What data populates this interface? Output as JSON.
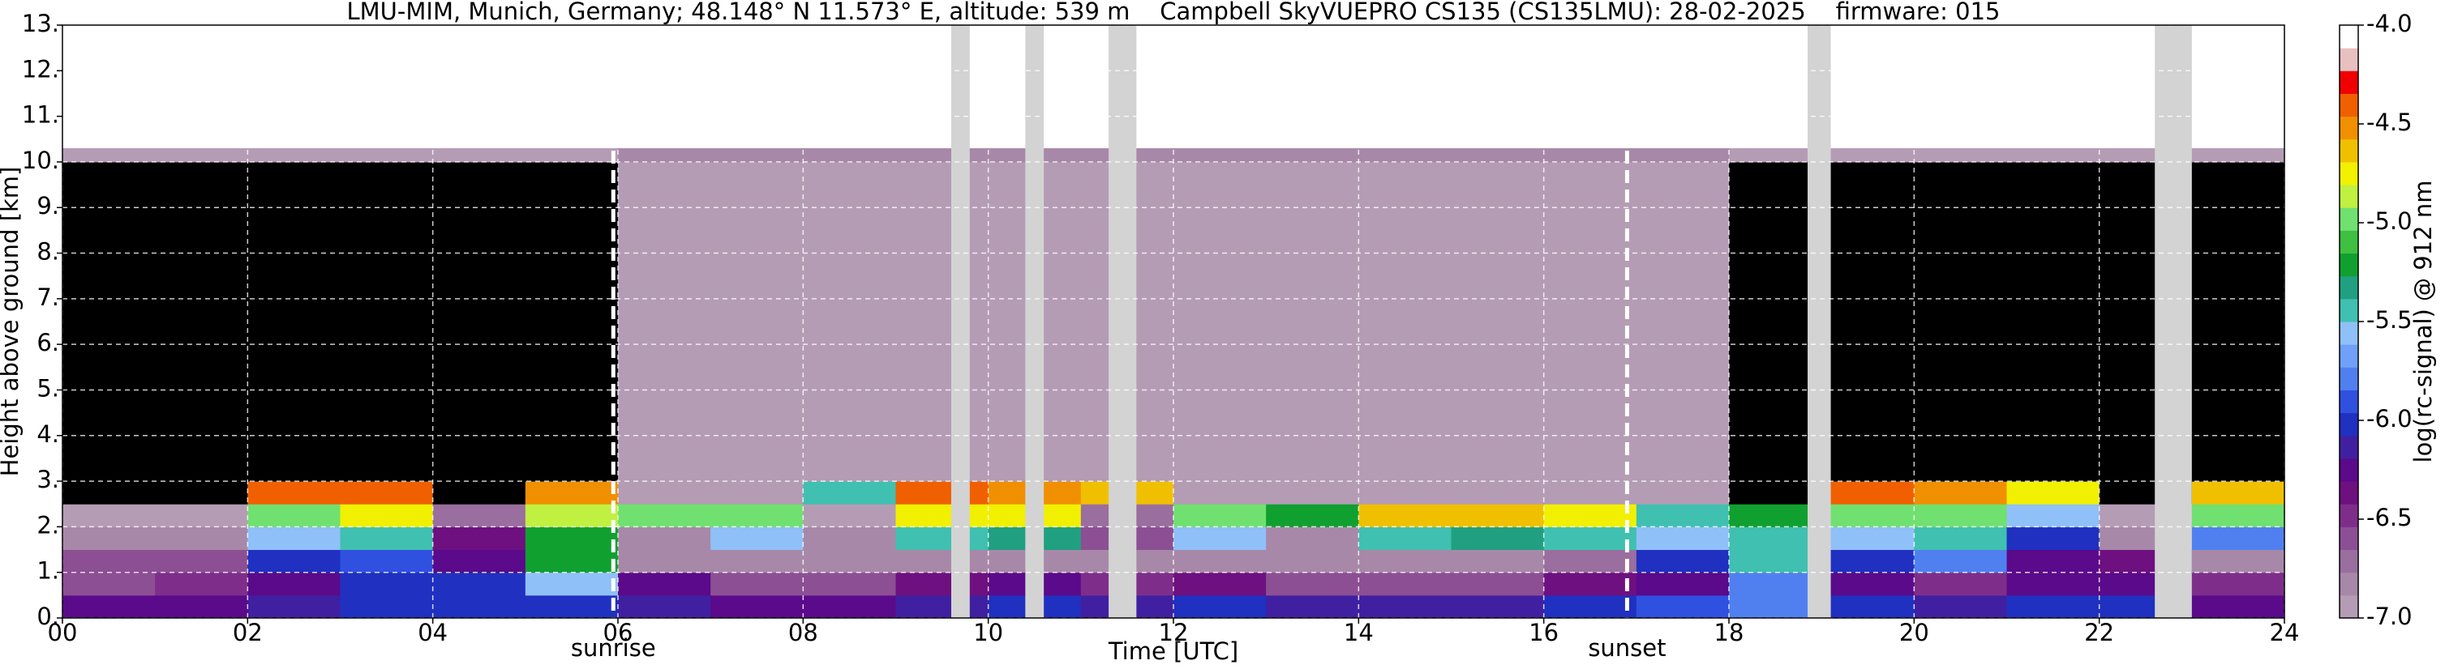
{
  "chart_data": {
    "type": "heatmap",
    "title": "LMU-MIM, Munich, Germany; 48.148° N 11.573° E, altitude: 539 m    Campbell SkyVUEPRO CS135 (CS135LMU): 28-02-2025    firmware: 015",
    "xlabel": "Time [UTC]",
    "ylabel": "Height above ground [km]",
    "colorbar_label": "log(rc-signal) @ 912 nm",
    "xlim": [
      0,
      24
    ],
    "ylim": [
      0,
      13
    ],
    "xticks": [
      {
        "value": 0,
        "label": "00"
      },
      {
        "value": 2,
        "label": "02"
      },
      {
        "value": 4,
        "label": "04"
      },
      {
        "value": 6,
        "label": "06"
      },
      {
        "value": 8,
        "label": "08"
      },
      10,
      12,
      14,
      16,
      18,
      20,
      22,
      24
    ],
    "yticks": [
      {
        "value": 0,
        "label": "0."
      },
      {
        "value": 1,
        "label": "1."
      },
      {
        "value": 2,
        "label": "2."
      },
      {
        "value": 3,
        "label": "3."
      },
      {
        "value": 4,
        "label": "4."
      },
      {
        "value": 5,
        "label": "5."
      },
      {
        "value": 6,
        "label": "6."
      },
      {
        "value": 7,
        "label": "7."
      },
      {
        "value": 8,
        "label": "8."
      },
      {
        "value": 9,
        "label": "9."
      },
      {
        "value": 10,
        "label": "10."
      },
      {
        "value": 11,
        "label": "11."
      },
      {
        "value": 12,
        "label": "12."
      },
      {
        "value": 13,
        "label": "13."
      }
    ],
    "grid": true,
    "clim": [
      -7,
      -4
    ],
    "cticks": [
      {
        "value": -4,
        "label": "-4.0"
      },
      {
        "value": -4.5,
        "label": "-4.5"
      },
      {
        "value": -5,
        "label": "-5.0"
      },
      {
        "value": -5.5,
        "label": "-5.5"
      },
      {
        "value": -6,
        "label": "-6.0"
      },
      {
        "value": -6.5,
        "label": "-6.5"
      },
      {
        "value": -7,
        "label": "-7.0"
      }
    ],
    "colors": [
      "#b59cb5",
      "#a888a8",
      "#9a6e9e",
      "#8c4f94",
      "#7e2e8a",
      "#6e1080",
      "#5a0a8a",
      "#4020a0",
      "#2030c0",
      "#3050e0",
      "#5080f0",
      "#70a0f8",
      "#90c0f8",
      "#40c0b0",
      "#20a080",
      "#10a030",
      "#40c040",
      "#70e070",
      "#c0f040",
      "#f0f000",
      "#f0c000",
      "#f09000",
      "#f06000",
      "#f00000",
      "#e8c0c0",
      "#ffffff"
    ],
    "below_color": "#000000",
    "gap_color": "#d3d3d3",
    "x_edges": [
      0,
      1,
      2,
      3,
      4,
      5,
      6,
      7,
      8,
      9,
      10,
      11,
      12,
      13,
      14,
      15,
      16,
      17,
      18,
      19,
      20,
      21,
      22,
      23,
      24
    ],
    "y_edges": [
      0,
      0.5,
      1,
      1.5,
      2,
      2.5,
      3,
      4,
      5,
      6,
      7,
      8,
      9,
      10,
      10.3
    ],
    "z": [
      [
        -6.2,
        -6.2,
        -6.1,
        -6.0,
        -6.0,
        -6.0,
        -6.1,
        -6.2,
        -6.2,
        -6.1,
        -6.0,
        -6.1,
        -6.0,
        -6.1,
        -6.1,
        -6.1,
        -6.0,
        -5.9,
        -5.8,
        -6.0,
        -6.1,
        -6.0,
        -6.0,
        -6.2
      ],
      [
        -6.6,
        -6.5,
        -6.2,
        -6.0,
        -6.0,
        -5.6,
        -6.3,
        -6.6,
        -6.6,
        -6.4,
        -6.3,
        -6.5,
        -6.4,
        -6.6,
        -6.6,
        -6.6,
        -6.4,
        -6.2,
        -5.8,
        -6.3,
        -6.5,
        -6.3,
        -6.2,
        -6.5
      ],
      [
        -6.6,
        -6.6,
        -6.0,
        -5.9,
        -6.2,
        -5.2,
        -6.8,
        -6.8,
        -6.8,
        -6.8,
        -6.8,
        -6.8,
        -6.8,
        -6.8,
        -6.8,
        -6.8,
        -6.7,
        -6.0,
        -5.5,
        -6.0,
        -5.8,
        -6.2,
        -6.4,
        -6.8
      ],
      [
        -6.8,
        -6.8,
        -5.6,
        -5.5,
        -6.4,
        -5.2,
        -6.8,
        -5.6,
        -6.8,
        -5.5,
        -5.3,
        -6.6,
        -5.6,
        -6.8,
        -5.5,
        -5.3,
        -5.4,
        -5.6,
        -5.5,
        -5.6,
        -5.5,
        -6.0,
        -6.8,
        -5.8
      ],
      [
        -6.9,
        -6.9,
        -5.0,
        -4.8,
        -6.7,
        -4.9,
        -5.0,
        -5.0,
        -6.9,
        -4.8,
        -4.8,
        -6.7,
        -5.0,
        -5.2,
        -4.6,
        -4.6,
        -4.8,
        -5.4,
        -5.2,
        -5.0,
        -5.0,
        -5.6,
        -6.9,
        -5.0
      ],
      [
        -7.1,
        -7.1,
        -4.4,
        -4.4,
        -7.1,
        -4.5,
        -6.9,
        -6.9,
        -5.4,
        -4.4,
        -4.5,
        -4.6,
        -6.9,
        -6.9,
        -6.9,
        -6.9,
        -6.9,
        -6.9,
        -7.1,
        -4.4,
        -4.5,
        -4.8,
        -7.1,
        -4.6
      ],
      [
        -7.1,
        -7.1,
        -7.1,
        -7.1,
        -7.1,
        -7.1,
        -6.9,
        -6.9,
        -6.9,
        -6.9,
        -6.9,
        -6.9,
        -6.9,
        -6.9,
        -6.9,
        -6.9,
        -6.9,
        -6.9,
        -7.1,
        -7.1,
        -7.1,
        -7.1,
        -7.1,
        -7.1
      ],
      [
        -7.1,
        -7.1,
        -7.1,
        -7.1,
        -7.1,
        -7.1,
        -6.9,
        -6.9,
        -6.9,
        -6.9,
        -6.9,
        -6.9,
        -6.9,
        -6.9,
        -6.9,
        -6.9,
        -6.9,
        -6.9,
        -7.1,
        -7.1,
        -7.1,
        -7.1,
        -7.1,
        -7.1
      ],
      [
        -7.1,
        -7.1,
        -7.1,
        -7.1,
        -7.1,
        -7.1,
        -6.9,
        -6.9,
        -6.9,
        -6.9,
        -6.9,
        -6.9,
        -6.9,
        -6.9,
        -6.9,
        -6.9,
        -6.9,
        -6.9,
        -7.1,
        -7.1,
        -7.1,
        -7.1,
        -7.1,
        -7.1
      ],
      [
        -7.1,
        -7.1,
        -7.1,
        -7.1,
        -7.1,
        -7.1,
        -6.9,
        -6.9,
        -6.9,
        -6.9,
        -6.9,
        -6.9,
        -6.9,
        -6.9,
        -6.9,
        -6.9,
        -6.9,
        -6.9,
        -7.1,
        -7.1,
        -7.1,
        -7.1,
        -7.1,
        -7.1
      ],
      [
        -7.1,
        -7.1,
        -7.1,
        -7.1,
        -7.1,
        -7.1,
        -6.9,
        -6.9,
        -6.9,
        -6.9,
        -6.9,
        -6.9,
        -6.9,
        -6.9,
        -6.9,
        -6.9,
        -6.9,
        -6.9,
        -7.1,
        -7.1,
        -7.1,
        -7.1,
        -7.1,
        -7.1
      ],
      [
        -7.1,
        -7.1,
        -7.1,
        -7.1,
        -7.1,
        -7.1,
        -6.9,
        -6.9,
        -6.9,
        -6.9,
        -6.9,
        -6.9,
        -6.9,
        -6.9,
        -6.9,
        -6.9,
        -6.9,
        -6.9,
        -7.1,
        -7.1,
        -7.1,
        -7.1,
        -7.1,
        -7.1
      ],
      [
        -7.1,
        -7.1,
        -7.1,
        -7.1,
        -7.1,
        -7.1,
        -6.9,
        -6.9,
        -6.9,
        -6.9,
        -6.9,
        -6.9,
        -6.9,
        -6.9,
        -6.9,
        -6.9,
        -6.9,
        -6.9,
        -7.1,
        -7.1,
        -7.1,
        -7.1,
        -7.1,
        -7.1
      ],
      [
        -6.9,
        -6.9,
        -6.9,
        -6.9,
        -6.9,
        -6.9,
        -6.8,
        -6.8,
        -6.8,
        -6.8,
        -6.8,
        -6.8,
        -6.8,
        -6.8,
        -6.8,
        -6.8,
        -6.8,
        -6.8,
        -6.9,
        -6.9,
        -6.9,
        -6.9,
        -6.9,
        -6.9
      ]
    ],
    "gaps": [
      [
        9.6,
        9.8
      ],
      [
        10.4,
        10.6
      ],
      [
        11.3,
        11.6
      ],
      [
        18.85,
        19.1
      ],
      [
        22.6,
        23.0
      ]
    ],
    "annotations": [
      {
        "text": "sunrise",
        "x": 5.95
      },
      {
        "text": "sunset",
        "x": 16.9
      }
    ]
  }
}
